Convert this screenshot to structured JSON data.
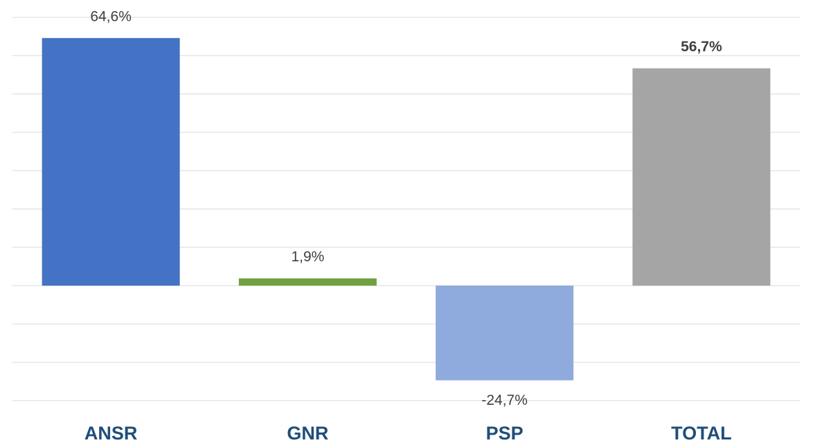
{
  "chart_data": {
    "type": "bar",
    "categories": [
      "ANSR",
      "GNR",
      "PSP",
      "TOTAL"
    ],
    "values": [
      64.6,
      1.9,
      -24.7,
      56.7
    ],
    "value_labels": [
      "64,6%",
      "1,9%",
      "-24,7%",
      "56,7%"
    ],
    "colors": [
      "#4472c4",
      "#70a040",
      "#8faadc",
      "#a5a5a5"
    ],
    "bold_labels": [
      false,
      false,
      false,
      true
    ],
    "ylim": [
      -30,
      70
    ],
    "yticks": [
      -30,
      -20,
      -10,
      0,
      10,
      20,
      30,
      40,
      50,
      60,
      70
    ],
    "grid": true
  }
}
